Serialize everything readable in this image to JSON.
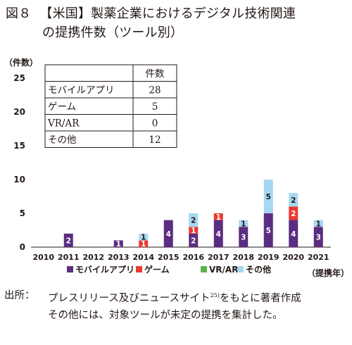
{
  "title": {
    "figure": "図８",
    "line1": "【米国】製薬企業におけるデジタル技術関連",
    "line2": "の提携件数（ツール別）"
  },
  "chart_data": {
    "type": "bar",
    "stacked": true,
    "ylabel": "（件数）",
    "xlabel": "（提携年）",
    "ylim": [
      0,
      25
    ],
    "yticks": [
      0,
      5,
      10,
      15,
      20,
      25
    ],
    "categories": [
      "2010",
      "2011",
      "2012",
      "2013",
      "2014",
      "2015",
      "2016",
      "2017",
      "2018",
      "2019",
      "2020",
      "2021"
    ],
    "series": [
      {
        "name": "モバイルアプリ",
        "color": "#5b2d81",
        "values": [
          0,
          2,
          0,
          1,
          0,
          4,
          2,
          4,
          3,
          5,
          4,
          3
        ]
      },
      {
        "name": "ゲーム",
        "color": "#e8392f",
        "values": [
          0,
          0,
          0,
          0,
          1,
          0,
          1,
          1,
          0,
          0,
          2,
          0
        ]
      },
      {
        "name": "VR/AR",
        "color": "#5bb14a",
        "values": [
          0,
          0,
          0,
          0,
          0,
          0,
          0,
          0,
          0,
          0,
          0,
          0
        ]
      },
      {
        "name": "その他",
        "color": "#a6d7f2",
        "values": [
          0,
          0,
          0,
          0,
          1,
          0,
          2,
          0,
          1,
          5,
          2,
          1
        ]
      }
    ],
    "inset_table": {
      "header": [
        "",
        "件数"
      ],
      "rows": [
        [
          "モバイルアプリ",
          "28"
        ],
        [
          "ゲーム",
          "5"
        ],
        [
          "VR/AR",
          "0"
        ],
        [
          "その他",
          "12"
        ]
      ]
    }
  },
  "source": {
    "label": "出所：",
    "text1": "プレスリリース及びニュースサイト",
    "sup": "25)",
    "text2": "をもとに著者作成",
    "text3": "その他には、対象ツールが未定の提携を集計した。"
  }
}
